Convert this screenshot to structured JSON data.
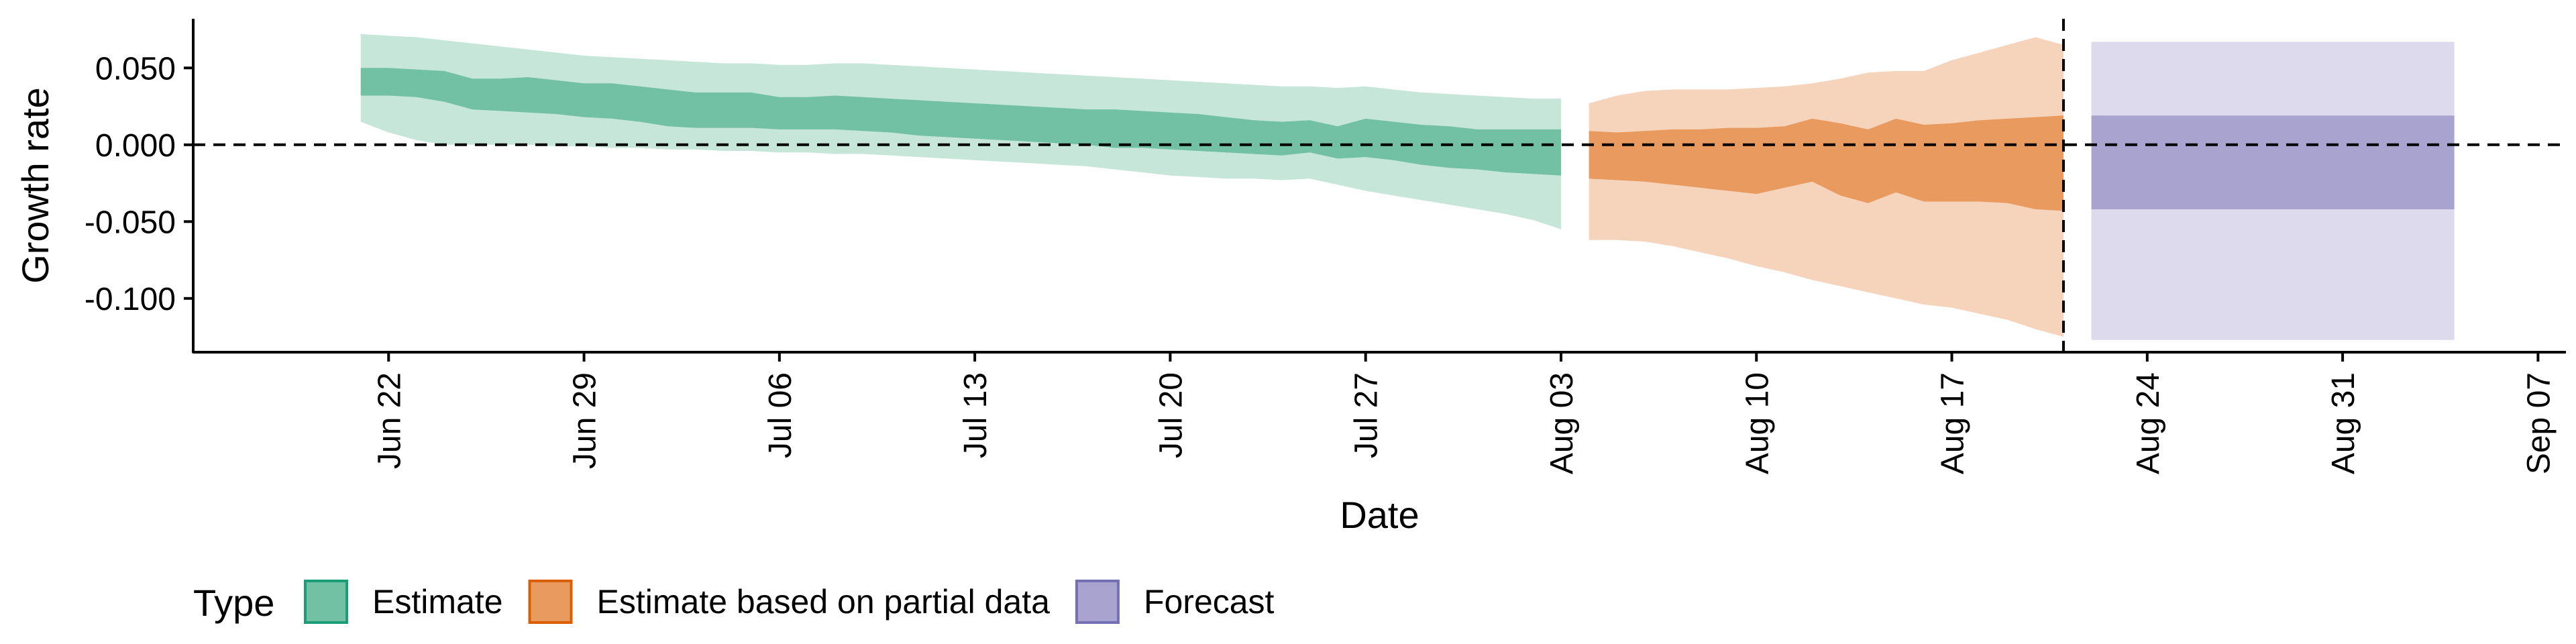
{
  "chart_data": {
    "type": "area",
    "xlabel": "Date",
    "ylabel": "Growth rate",
    "xlim": [
      "2020-06-15",
      "2020-09-08"
    ],
    "ylim": [
      -0.135,
      0.082
    ],
    "x_ticks": [
      "2020-06-22",
      "2020-06-29",
      "2020-07-06",
      "2020-07-13",
      "2020-07-20",
      "2020-07-27",
      "2020-08-03",
      "2020-08-10",
      "2020-08-17",
      "2020-08-24",
      "2020-08-31",
      "2020-09-07"
    ],
    "x_tick_labels": [
      "Jun 22",
      "Jun 29",
      "Jul 06",
      "Jul 13",
      "Jul 20",
      "Jul 27",
      "Aug 03",
      "Aug 10",
      "Aug 17",
      "Aug 24",
      "Aug 31",
      "Sep 07"
    ],
    "y_ticks": [
      0.05,
      0,
      -0.05,
      -0.1
    ],
    "y_tick_labels": [
      "0.050",
      "0.000",
      "-0.050",
      "-0.100"
    ],
    "hline_y": 0,
    "vline_date": "2020-08-21",
    "grid": false,
    "legend": {
      "title": "Type",
      "position": "bottom-left",
      "entries": [
        {
          "label": "Estimate",
          "fill": "#73c1a4",
          "stroke": "#1b9e77"
        },
        {
          "label": "Estimate based on partial data",
          "fill": "#e99a5e",
          "stroke": "#d95f02"
        },
        {
          "label": "Forecast",
          "fill": "#a8a4cf",
          "stroke": "#7570b3"
        }
      ]
    },
    "series": [
      {
        "name": "Estimate",
        "inner_color": "#73c1a4",
        "outer_color": "#c5e6d9",
        "start_date": "2020-06-21",
        "end_date": "2020-08-03",
        "inner_upper": [
          0.05,
          0.05,
          0.049,
          0.048,
          0.043,
          0.043,
          0.044,
          0.042,
          0.04,
          0.04,
          0.038,
          0.036,
          0.034,
          0.034,
          0.034,
          0.031,
          0.031,
          0.032,
          0.031,
          0.03,
          0.029,
          0.028,
          0.027,
          0.026,
          0.025,
          0.024,
          0.023,
          0.023,
          0.022,
          0.021,
          0.02,
          0.018,
          0.016,
          0.015,
          0.016,
          0.012,
          0.017,
          0.015,
          0.013,
          0.012,
          0.01,
          0.01,
          0.01,
          0.01
        ],
        "inner_lower": [
          0.032,
          0.032,
          0.031,
          0.028,
          0.023,
          0.022,
          0.021,
          0.02,
          0.018,
          0.017,
          0.015,
          0.012,
          0.011,
          0.011,
          0.011,
          0.01,
          0.01,
          0.01,
          0.009,
          0.008,
          0.006,
          0.005,
          0.004,
          0.003,
          0.002,
          0.001,
          0.0,
          -0.002,
          -0.002,
          -0.003,
          -0.004,
          -0.005,
          -0.006,
          -0.007,
          -0.005,
          -0.009,
          -0.008,
          -0.01,
          -0.013,
          -0.015,
          -0.016,
          -0.018,
          -0.019,
          -0.02
        ],
        "outer_upper": [
          0.072,
          0.071,
          0.07,
          0.068,
          0.066,
          0.064,
          0.062,
          0.06,
          0.058,
          0.057,
          0.056,
          0.055,
          0.054,
          0.053,
          0.053,
          0.052,
          0.052,
          0.053,
          0.053,
          0.052,
          0.051,
          0.05,
          0.049,
          0.048,
          0.047,
          0.046,
          0.045,
          0.044,
          0.043,
          0.042,
          0.041,
          0.04,
          0.039,
          0.038,
          0.038,
          0.037,
          0.038,
          0.036,
          0.034,
          0.033,
          0.032,
          0.031,
          0.03,
          0.03
        ],
        "outer_lower": [
          0.015,
          0.008,
          0.003,
          0.0,
          0.0,
          0.0,
          0.0,
          -0.001,
          -0.001,
          -0.002,
          -0.002,
          -0.003,
          -0.003,
          -0.004,
          -0.004,
          -0.005,
          -0.005,
          -0.006,
          -0.006,
          -0.007,
          -0.008,
          -0.009,
          -0.01,
          -0.011,
          -0.012,
          -0.013,
          -0.014,
          -0.016,
          -0.018,
          -0.02,
          -0.021,
          -0.022,
          -0.022,
          -0.023,
          -0.022,
          -0.026,
          -0.03,
          -0.033,
          -0.036,
          -0.039,
          -0.042,
          -0.045,
          -0.049,
          -0.055
        ]
      },
      {
        "name": "Estimate based on partial data",
        "inner_color": "#e99a5e",
        "outer_color": "#f6d4bc",
        "start_date": "2020-08-04",
        "end_date": "2020-08-21",
        "inner_upper": [
          0.009,
          0.008,
          0.009,
          0.01,
          0.01,
          0.011,
          0.011,
          0.012,
          0.017,
          0.014,
          0.01,
          0.017,
          0.013,
          0.014,
          0.016,
          0.017,
          0.018,
          0.019
        ],
        "inner_lower": [
          -0.022,
          -0.023,
          -0.024,
          -0.026,
          -0.028,
          -0.03,
          -0.032,
          -0.028,
          -0.024,
          -0.033,
          -0.038,
          -0.031,
          -0.037,
          -0.037,
          -0.037,
          -0.038,
          -0.042,
          -0.043
        ],
        "outer_upper": [
          0.027,
          0.032,
          0.035,
          0.036,
          0.036,
          0.036,
          0.037,
          0.038,
          0.04,
          0.043,
          0.047,
          0.048,
          0.048,
          0.055,
          0.06,
          0.065,
          0.07,
          0.065
        ],
        "outer_lower": [
          -0.062,
          -0.062,
          -0.063,
          -0.066,
          -0.07,
          -0.074,
          -0.079,
          -0.083,
          -0.088,
          -0.092,
          -0.096,
          -0.1,
          -0.104,
          -0.106,
          -0.11,
          -0.114,
          -0.12,
          -0.125
        ]
      },
      {
        "name": "Forecast",
        "inner_color": "#a8a4cf",
        "outer_color": "#dcdaec",
        "start_date": "2020-08-22",
        "end_date": "2020-09-04",
        "inner_upper": [
          0.019,
          0.019
        ],
        "inner_lower": [
          -0.042,
          -0.042
        ],
        "outer_upper": [
          0.067,
          0.067
        ],
        "outer_lower": [
          -0.127,
          -0.127
        ]
      }
    ]
  }
}
